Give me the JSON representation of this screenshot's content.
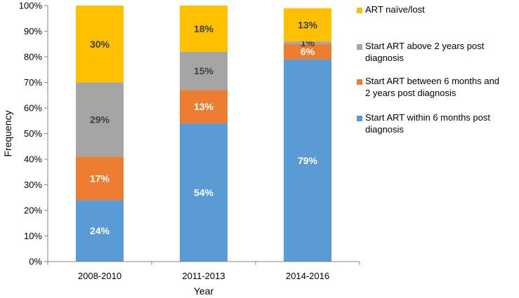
{
  "chart_data": {
    "type": "bar",
    "stacked": true,
    "categories": [
      "2008-2010",
      "2011-2013",
      "2014-2016"
    ],
    "series": [
      {
        "name": "Start ART within 6 months post diagnosis",
        "lines": [
          "Start ART within 6 months post",
          "diagnosis"
        ],
        "color": "#5b9bd5",
        "label_color": "#ffffff",
        "values": [
          24,
          54,
          79
        ]
      },
      {
        "name": "Start ART between 6 months and 2 years post diagnosis",
        "lines": [
          "Start ART between 6 months and",
          "2 years post diagnosis"
        ],
        "color": "#ed7d31",
        "label_color": "#ffffff",
        "values": [
          17,
          13,
          6
        ]
      },
      {
        "name": "Start ART above 2 years post diagnosis",
        "lines": [
          "Start ART above 2 years post",
          "diagnosis"
        ],
        "color": "#a5a5a5",
        "label_color": "#404040",
        "values": [
          29,
          15,
          1
        ]
      },
      {
        "name": "ART naïve/lost",
        "lines": [
          "ART naïve/lost"
        ],
        "color": "#ffc000",
        "label_color": "#404040",
        "values": [
          30,
          18,
          13
        ]
      }
    ],
    "legend_order": [
      3,
      2,
      1,
      0
    ],
    "title": "",
    "xlabel": "Year",
    "ylabel": "Frequency",
    "ylim": [
      0,
      100
    ],
    "yticks": [
      "0%",
      "10%",
      "20%",
      "30%",
      "40%",
      "50%",
      "60%",
      "70%",
      "80%",
      "90%",
      "100%"
    ],
    "grid": false,
    "legend_position": "right"
  }
}
